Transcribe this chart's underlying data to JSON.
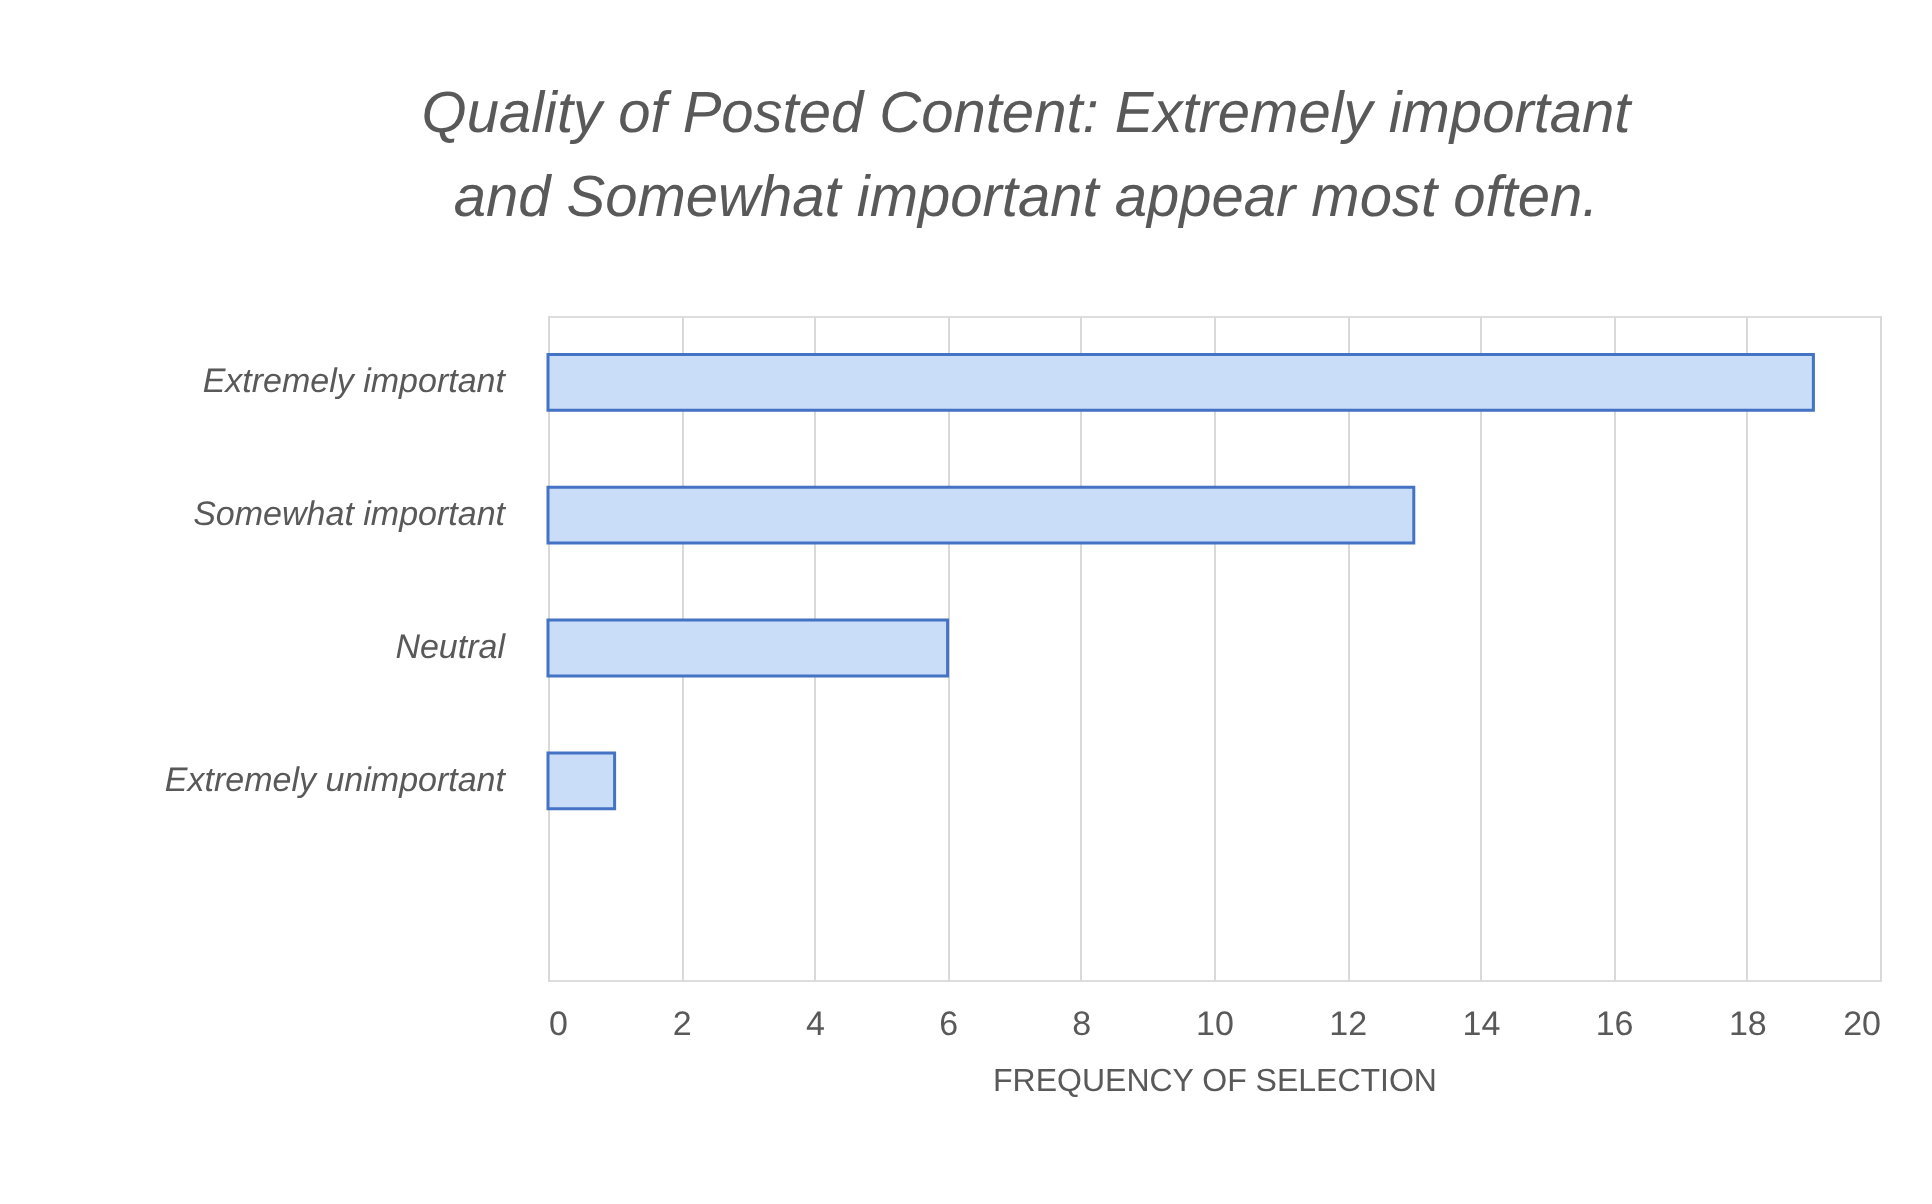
{
  "chart_data": {
    "type": "bar",
    "orientation": "horizontal",
    "title": "Quality of Posted Content: Extremely important and Somewhat important appear most often.",
    "xlabel": "FREQUENCY OF SELECTION",
    "categories": [
      "Extremely important",
      "Somewhat important",
      "Neutral",
      "Extremely unimportant",
      null
    ],
    "values": [
      19,
      13,
      6,
      1,
      null
    ],
    "color": "#c9dcf8",
    "xlim": [
      0,
      20
    ],
    "xticks": [
      0,
      2,
      4,
      6,
      8,
      10,
      12,
      14,
      16,
      18,
      20
    ],
    "grid": "x"
  }
}
